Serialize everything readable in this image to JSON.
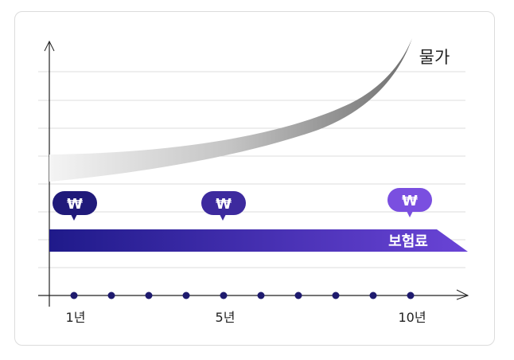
{
  "diagram": {
    "price_label": "물가",
    "premium_label": "보험료",
    "badge_symbol": "₩",
    "x_labels": [
      "1년",
      "5년",
      "10년"
    ],
    "colors": {
      "axis": "#222222",
      "grid": "#dddddd",
      "dot": "#1e1a6e",
      "badge_dark": "#201a7a",
      "badge_mid": "#3d2a9e",
      "badge_light": "#7a4fe0",
      "arrow_start": "#1f1a8a",
      "arrow_end": "#6a44d6"
    }
  }
}
